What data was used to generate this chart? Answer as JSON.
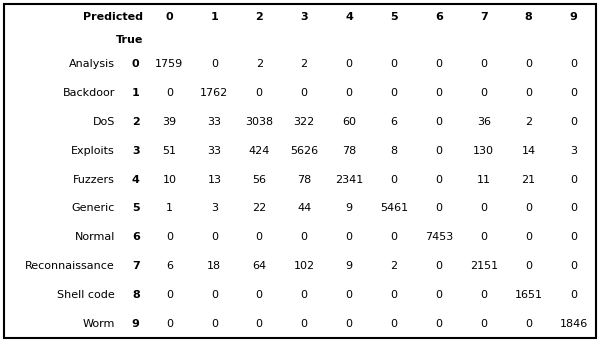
{
  "row_labels": [
    "Analysis",
    "Backdoor",
    "DoS",
    "Exploits",
    "Fuzzers",
    "Generic",
    "Normal",
    "Reconnaissance",
    "Shell code",
    "Worm"
  ],
  "row_indices": [
    "0",
    "1",
    "2",
    "3",
    "4",
    "5",
    "6",
    "7",
    "8",
    "9"
  ],
  "col_indices": [
    "0",
    "1",
    "2",
    "3",
    "4",
    "5",
    "6",
    "7",
    "8",
    "9"
  ],
  "header_predicted": "Predicted",
  "header_true": "True",
  "matrix": [
    [
      1759,
      0,
      2,
      2,
      0,
      0,
      0,
      0,
      0,
      0
    ],
    [
      0,
      1762,
      0,
      0,
      0,
      0,
      0,
      0,
      0,
      0
    ],
    [
      39,
      33,
      3038,
      322,
      60,
      6,
      0,
      36,
      2,
      0
    ],
    [
      51,
      33,
      424,
      5626,
      78,
      8,
      0,
      130,
      14,
      3
    ],
    [
      10,
      13,
      56,
      78,
      2341,
      0,
      0,
      11,
      21,
      0
    ],
    [
      1,
      3,
      22,
      44,
      9,
      5461,
      0,
      0,
      0,
      0
    ],
    [
      0,
      0,
      0,
      0,
      0,
      0,
      7453,
      0,
      0,
      0
    ],
    [
      6,
      18,
      64,
      102,
      9,
      2,
      0,
      2151,
      0,
      0
    ],
    [
      0,
      0,
      0,
      0,
      0,
      0,
      0,
      0,
      1651,
      0
    ],
    [
      0,
      0,
      0,
      0,
      0,
      0,
      0,
      0,
      0,
      1846
    ]
  ],
  "bg_color": "#ffffff",
  "border_color": "#000000",
  "text_color": "#000000",
  "cell_fontsize": 8,
  "label_fontsize": 8,
  "header_fontsize": 8,
  "fig_width": 6.0,
  "fig_height": 3.42,
  "dpi": 100
}
